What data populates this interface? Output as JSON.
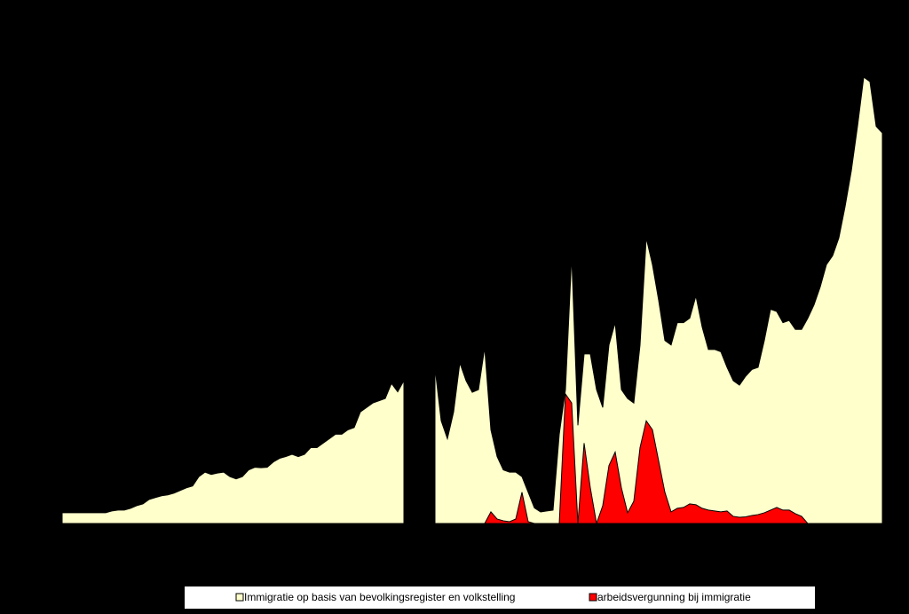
{
  "chart_data": {
    "type": "area",
    "ylim": [
      0,
      100
    ],
    "legend": "bottom",
    "background": "#000000",
    "series": [
      {
        "name": "Immigratie op basis van bevolkingsregister en volkstelling",
        "color": "#ffffcc",
        "values": [
          2.4,
          2.4,
          2.4,
          2.4,
          2.4,
          2.4,
          2.4,
          2.4,
          2.8,
          3,
          3,
          3.4,
          4,
          4.4,
          5.4,
          5.8,
          6.2,
          6.4,
          6.8,
          7.4,
          8,
          8.4,
          10.5,
          11.5,
          11,
          11.3,
          11.5,
          10.5,
          10,
          10.5,
          12,
          12.6,
          12.5,
          12.6,
          13.8,
          14.6,
          15,
          15.5,
          15,
          15.5,
          17,
          17,
          18,
          19,
          20,
          20,
          21,
          21.5,
          25,
          26,
          27,
          27.5,
          28,
          31.4,
          29.5,
          32,
          null,
          null,
          null,
          null,
          35,
          23,
          19,
          25,
          36,
          32,
          29.4,
          30,
          39.4,
          21,
          15,
          12,
          11.5,
          11.5,
          10.5,
          7,
          3.5,
          2.6,
          2.8,
          3,
          20,
          30,
          60,
          22,
          38,
          38,
          30,
          26,
          40,
          45,
          30,
          28,
          27,
          40,
          64,
          58,
          50,
          41,
          40,
          45,
          45,
          46,
          51,
          44,
          39,
          39,
          38.5,
          35,
          32,
          31,
          33,
          34.5,
          35,
          41,
          48,
          47.5,
          45,
          45.5,
          43.5,
          43.5,
          46,
          49,
          53,
          58,
          60,
          64,
          71,
          79,
          89,
          100,
          99,
          89,
          87.5
        ]
      },
      {
        "name": "arbeidsvergunning bij immigratie",
        "color": "#ff0000",
        "values": [
          null,
          null,
          null,
          null,
          null,
          null,
          null,
          null,
          null,
          null,
          null,
          null,
          null,
          null,
          null,
          null,
          null,
          null,
          null,
          null,
          null,
          null,
          null,
          null,
          null,
          null,
          null,
          null,
          null,
          null,
          null,
          null,
          null,
          null,
          null,
          null,
          null,
          null,
          null,
          null,
          null,
          null,
          null,
          null,
          null,
          null,
          null,
          null,
          null,
          null,
          null,
          null,
          null,
          null,
          null,
          null,
          null,
          null,
          null,
          null,
          null,
          null,
          null,
          null,
          null,
          null,
          null,
          null,
          0,
          2.6,
          1,
          0.6,
          0.4,
          1,
          7,
          0.4,
          0,
          0,
          0,
          0,
          0,
          29,
          27,
          0,
          18,
          8,
          0,
          4,
          13,
          16,
          8,
          2.4,
          5,
          17,
          23,
          21,
          14,
          7,
          2.6,
          3.4,
          3.6,
          4.4,
          4.2,
          3.4,
          3,
          2.8,
          2.6,
          2.8,
          1.6,
          1.4,
          1.5,
          1.8,
          2,
          2.4,
          3,
          3.6,
          3,
          3,
          2.2,
          1.6,
          0,
          null,
          null,
          null,
          null,
          null,
          null,
          null,
          null,
          null,
          null,
          null,
          null
        ]
      }
    ]
  }
}
